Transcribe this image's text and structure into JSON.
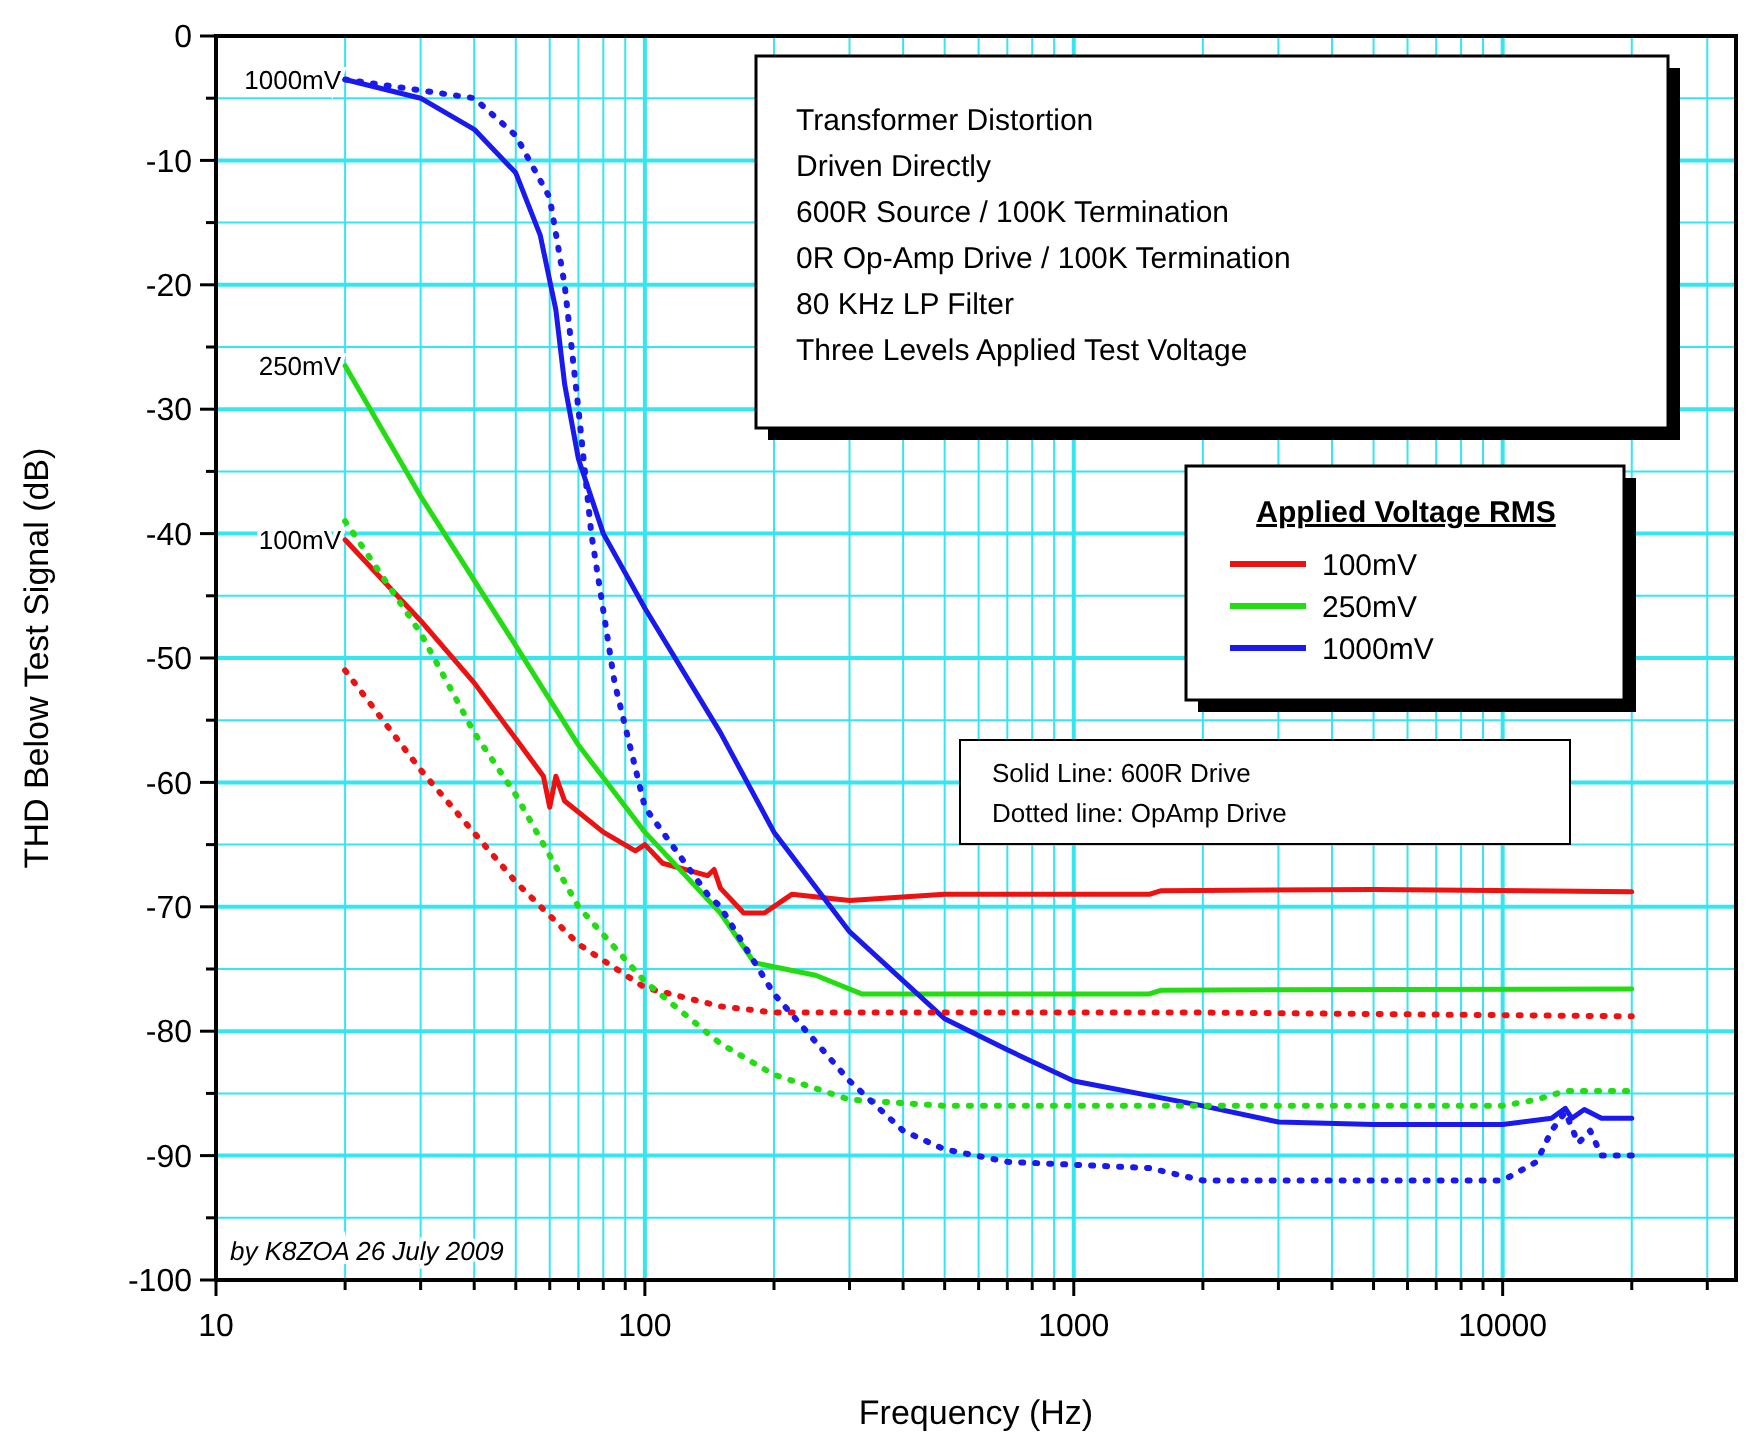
{
  "chart_data": {
    "type": "line",
    "title": "Transformer Distortion",
    "xlabel": "Frequency (Hz)",
    "ylabel": "THD Below Test Signal (dB)",
    "legend_title": "Applied Voltage RMS",
    "legend": "right",
    "grid": true,
    "log": "x",
    "line_style": "solid",
    "marker": "none",
    "xlim": [
      10,
      35000
    ],
    "ylim": [
      -100,
      0
    ],
    "xticks": [
      10,
      {
        "value": 20,
        "label": null
      },
      {
        "value": 30,
        "label": null
      },
      {
        "value": 40,
        "label": null
      },
      {
        "value": 50,
        "label": null
      },
      {
        "value": 60,
        "label": null
      },
      {
        "value": 70,
        "label": null
      },
      {
        "value": 80,
        "label": null
      },
      {
        "value": 90,
        "label": null
      },
      100,
      {
        "value": 200,
        "label": null
      },
      {
        "value": 300,
        "label": null
      },
      {
        "value": 400,
        "label": null
      },
      {
        "value": 500,
        "label": null
      },
      {
        "value": 600,
        "label": null
      },
      {
        "value": 700,
        "label": null
      },
      {
        "value": 800,
        "label": null
      },
      {
        "value": 900,
        "label": null
      },
      1000,
      {
        "value": 2000,
        "label": null
      },
      {
        "value": 3000,
        "label": null
      },
      {
        "value": 4000,
        "label": null
      },
      {
        "value": 5000,
        "label": null
      },
      {
        "value": 6000,
        "label": null
      },
      {
        "value": 7000,
        "label": null
      },
      {
        "value": 8000,
        "label": null
      },
      {
        "value": 9000,
        "label": null
      },
      10000,
      {
        "value": 20000,
        "label": null
      },
      {
        "value": 30000,
        "label": null
      }
    ],
    "yticks": [
      -100,
      {
        "value": -95,
        "label": null
      },
      -90,
      {
        "value": -85,
        "label": null
      },
      -80,
      {
        "value": -75,
        "label": null
      },
      -70,
      {
        "value": -65,
        "label": null
      },
      -60,
      {
        "value": -55,
        "label": null
      },
      -50,
      {
        "value": -45,
        "label": null
      },
      -40,
      {
        "value": -35,
        "label": null
      },
      -30,
      {
        "value": -25,
        "label": null
      },
      -20,
      {
        "value": -15,
        "label": null
      },
      -10,
      {
        "value": -5,
        "label": null
      },
      0
    ],
    "series": [
      {
        "name": "100mV",
        "color": "#ee1111",
        "x": [
          20,
          30,
          40,
          50,
          58,
          60,
          62,
          65,
          80,
          95,
          100,
          110,
          140,
          145,
          150,
          170,
          190,
          220,
          300,
          500,
          1500,
          1600,
          5000,
          20000
        ],
        "values": [
          -40.5,
          -47,
          -52,
          -56.5,
          -59.5,
          -62,
          -59.5,
          -61.5,
          -64,
          -65.5,
          -65,
          -66.5,
          -67.5,
          -67,
          -68.5,
          -70.5,
          -70.5,
          -69,
          -69.5,
          -69,
          -69,
          -68.7,
          -68.6,
          -68.8
        ]
      },
      {
        "name": "250mV",
        "color": "#22dd11",
        "x": [
          20,
          30,
          50,
          70,
          100,
          150,
          180,
          250,
          320,
          400,
          600,
          1500,
          1600,
          20000
        ],
        "values": [
          -26.5,
          -37,
          -49,
          -57,
          -64,
          -70.5,
          -74.5,
          -75.5,
          -77,
          -77,
          -77,
          -77,
          -76.7,
          -76.6
        ]
      },
      {
        "name": "1000mV",
        "color": "#1a1aee",
        "x": [
          20,
          30,
          40,
          50,
          57,
          62,
          65,
          70,
          80,
          100,
          150,
          200,
          300,
          500,
          700,
          1000,
          2000,
          3000,
          5000,
          10000,
          13000,
          14000,
          14500,
          15500,
          17000,
          20000
        ],
        "values": [
          -3.5,
          -5,
          -7.5,
          -11,
          -16,
          -22,
          -28,
          -34,
          -40,
          -46,
          -56,
          -64,
          -72,
          -79,
          -81.5,
          -84,
          -86,
          -87.3,
          -87.5,
          -87.5,
          -87,
          -86.2,
          -87,
          -86.3,
          -87,
          -87
        ]
      },
      {
        "color": "#ee1111",
        "line_style": "dotted",
        "x": [
          20,
          30,
          50,
          70,
          100,
          150,
          200,
          500,
          2000,
          20000
        ],
        "values": [
          -51,
          -59,
          -68,
          -73,
          -76.5,
          -78,
          -78.5,
          -78.5,
          -78.5,
          -78.8
        ]
      },
      {
        "color": "#22dd11",
        "line_style": "dotted",
        "x": [
          20,
          30,
          40,
          50,
          70,
          100,
          150,
          200,
          300,
          500,
          2000,
          10000,
          12000,
          14000,
          20000
        ],
        "values": [
          -39,
          -48,
          -56,
          -61,
          -70,
          -76,
          -81,
          -83.5,
          -85.5,
          -86,
          -86,
          -86,
          -85.5,
          -84.8,
          -84.8
        ]
      },
      {
        "color": "#1a1aee",
        "line_style": "dotted",
        "x": [
          20,
          40,
          50,
          60,
          65,
          70,
          75,
          85,
          100,
          140,
          150,
          200,
          300,
          400,
          500,
          700,
          1500,
          2000,
          3000,
          10000,
          12000,
          13000,
          14000,
          15000,
          16000,
          17000,
          20000
        ],
        "values": [
          -3.5,
          -5,
          -8,
          -13,
          -20,
          -30,
          -40,
          -52,
          -62,
          -69,
          -70,
          -77,
          -84,
          -88,
          -89.5,
          -90.5,
          -91,
          -92,
          -92,
          -92,
          -90.5,
          -88,
          -86.5,
          -89,
          -88,
          -90,
          -90
        ]
      }
    ],
    "annotations": [
      "Driven Directly",
      "600R Source / 100K Termination",
      "0R Op-Amp Drive / 100K Termination",
      "80 KHz LP Filter",
      "Three Levels Applied Test Voltage",
      "Solid Line: 600R Drive",
      "Dotted line: OpAmp Drive",
      "by K8ZOA 26 July 2009",
      "100mV",
      "250mV",
      "1000mV"
    ]
  }
}
